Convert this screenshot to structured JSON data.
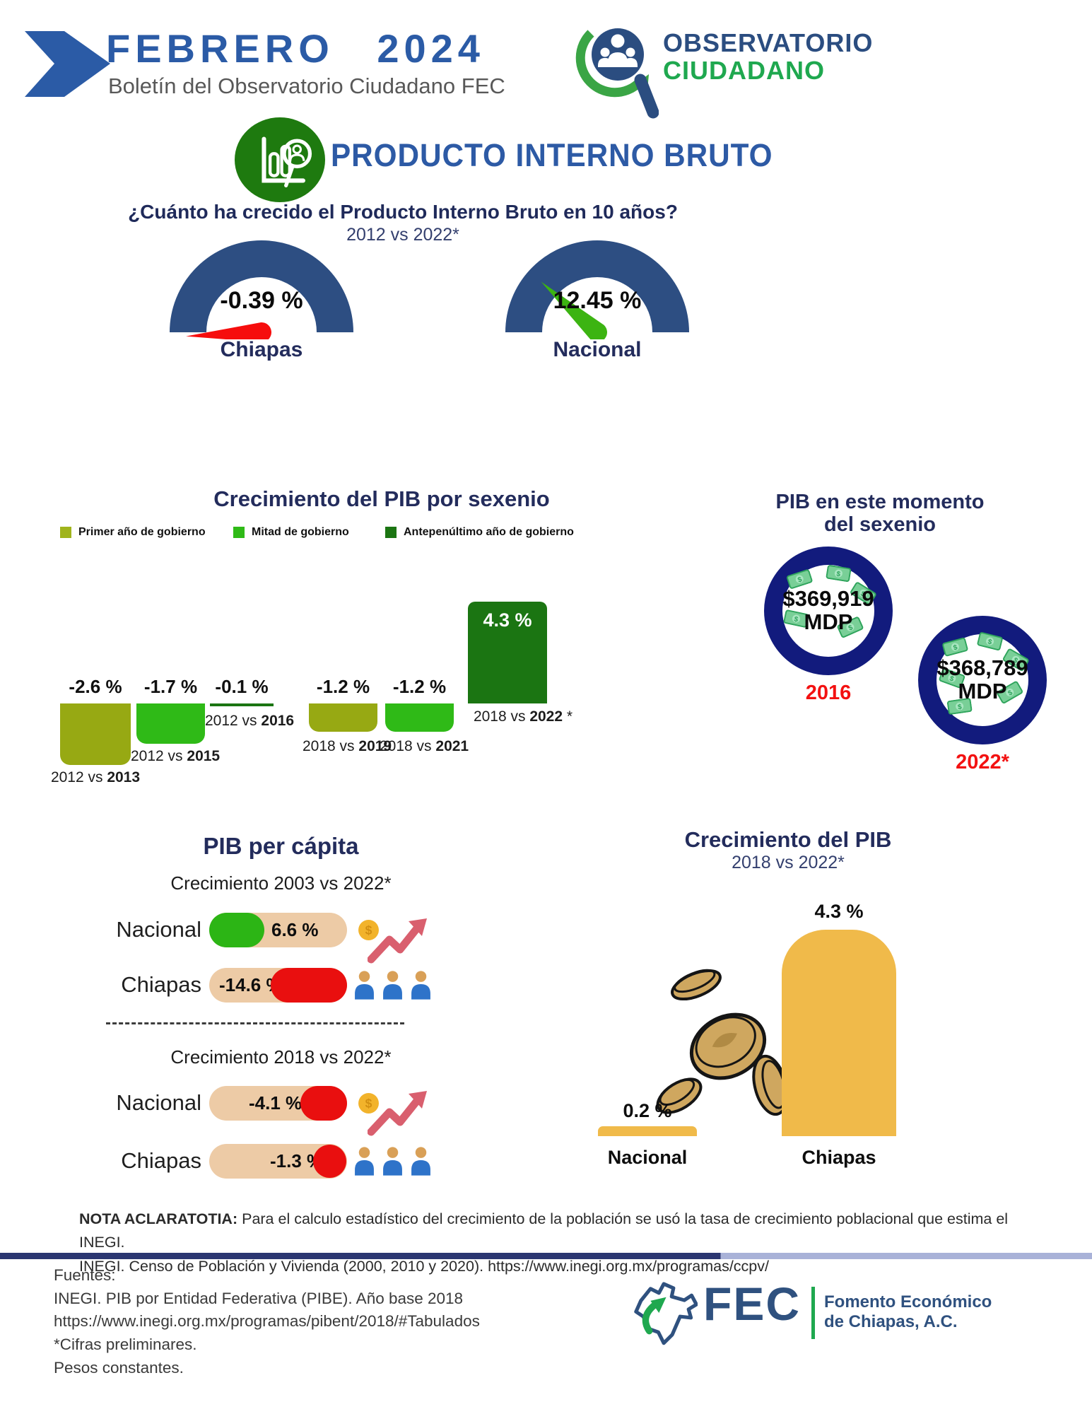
{
  "header": {
    "month_year": "FEBRERO 2024",
    "bulletin": "Boletín del Observatorio Ciudadano FEC",
    "logo_line1": "OBSERVATORIO",
    "logo_line2": "CIUDADANO"
  },
  "pib_header": {
    "title": "PRODUCTO INTERNO BRUTO"
  },
  "gauges": {
    "question": "¿Cuánto ha crecido el Producto Interno Bruto en 10 años?",
    "period": "2012 vs 2022*",
    "chiapas": {
      "value": "-0.39 %",
      "label": "Chiapas"
    },
    "nacional": {
      "value": "12.45 %",
      "label": "Nacional"
    }
  },
  "sexenio": {
    "title": "Crecimiento del PIB por sexenio",
    "legend": [
      {
        "label": "Primer año de gobierno",
        "color": "#a0b41c"
      },
      {
        "label": "Mitad de gobierno",
        "color": "#2fba17"
      },
      {
        "label": "Antepenúltimo año de gobierno",
        "color": "#1b7512"
      }
    ],
    "bars": [
      {
        "value_label": "-2.6 %",
        "prefix": "2012 vs ",
        "year": "2013",
        "suffix": "",
        "color": "#97a913"
      },
      {
        "value_label": "-1.7 %",
        "prefix": "2012 vs ",
        "year": "2015",
        "suffix": "",
        "color": "#2fba17"
      },
      {
        "value_label": "-0.1 %",
        "prefix": "2012 vs ",
        "year": "2016",
        "suffix": "",
        "color": "#1b7512"
      },
      {
        "value_label": "-1.2 %",
        "prefix": "2018 vs ",
        "year": "2019",
        "suffix": "",
        "color": "#97a913"
      },
      {
        "value_label": "-1.2 %",
        "prefix": "2018 vs ",
        "year": "2021",
        "suffix": "",
        "color": "#2fba17"
      },
      {
        "value_label": "4.3 %",
        "prefix": "2018 vs ",
        "year": "2022",
        "suffix": " *",
        "color": "#1b7512"
      }
    ]
  },
  "momento": {
    "title_line1": "PIB en este momento",
    "title_line2": "del sexenio",
    "circles": [
      {
        "amount": "$369,919",
        "unit": "MDP",
        "year": "2016"
      },
      {
        "amount": "$368,789",
        "unit": "MDP",
        "year": "2022*"
      }
    ]
  },
  "per_capita": {
    "title": "PIB per cápita",
    "section1": {
      "subtitle": "Crecimiento 2003 vs 2022*",
      "rows": [
        {
          "region": "Nacional",
          "value_label": "6.6 %"
        },
        {
          "region": "Chiapas",
          "value_label": "-14.6 %"
        }
      ]
    },
    "section2": {
      "subtitle": "Crecimiento 2018 vs 2022*",
      "rows": [
        {
          "region": "Nacional",
          "value_label": "-4.1 %"
        },
        {
          "region": "Chiapas",
          "value_label": "-1.3 %"
        }
      ]
    }
  },
  "crecimiento": {
    "title": "Crecimiento del PIB",
    "subtitle": "2018 vs 2022*",
    "bars": [
      {
        "label": "Nacional",
        "value_label": "0.2 %"
      },
      {
        "label": "Chiapas",
        "value_label": "4.3 %"
      }
    ]
  },
  "nota": {
    "bold": "NOTA ACLARATOTIA:",
    "text": " Para el calculo estadístico del crecimiento de la población se usó la tasa de crecimiento poblacional que estima el INEGI.",
    "line2": "INEGI. Censo de Población y Vivienda (2000, 2010 y 2020). https://www.inegi.org.mx/programas/ccpv/"
  },
  "fuentes": {
    "line1": "Fuentes:",
    "line2": "INEGI. PIB por Entidad Federativa (PIBE). Año base 2018",
    "line3": "https://www.inegi.org.mx/programas/pibent/2018/#Tabulados",
    "line4": "*Cifras preliminares.",
    "line5": "Pesos constantes."
  },
  "fec": {
    "name": "FEC",
    "org_line1": "Fomento Económico",
    "org_line2": "de Chiapas, A.C."
  },
  "colors": {
    "brand_blue": "#2b5ba6",
    "title_navy": "#232c5c",
    "gauge_arc": "#2d4e82",
    "needle_red": "#f60d0d",
    "needle_green": "#3cb412",
    "olive": "#97a913",
    "bright_green": "#2fba17",
    "dark_green": "#1b7512",
    "ring_navy": "#121b7d",
    "year_red": "#f31111",
    "tan_pill": "#edcba6",
    "pill_green": "#2cb515",
    "pill_red": "#e90f0f",
    "gold": "#f0ba4a",
    "fec_blue": "#2f517f",
    "fec_green": "#1fa84f"
  },
  "chart_data": [
    {
      "type": "gauge",
      "title": "¿Cuánto ha crecido el Producto Interno Bruto en 10 años?",
      "subtitle": "2012 vs 2022*",
      "unit": "%",
      "series": [
        {
          "name": "Chiapas",
          "value": -0.39
        },
        {
          "name": "Nacional",
          "value": 12.45
        }
      ]
    },
    {
      "type": "bar",
      "title": "Crecimiento del PIB por sexenio",
      "categories": [
        "2012 vs 2013",
        "2012 vs 2015",
        "2012 vs 2016",
        "2018 vs 2019",
        "2018 vs 2021",
        "2018 vs 2022 *"
      ],
      "values": [
        -2.6,
        -1.7,
        -0.1,
        -1.2,
        -1.2,
        4.3
      ],
      "unit": "%",
      "legend": [
        "Primer año de gobierno",
        "Mitad de gobierno",
        "Antepenúltimo año de gobierno"
      ],
      "legend_position": "top",
      "grid": false
    },
    {
      "type": "bar",
      "title": "PIB en este momento del sexenio",
      "categories": [
        "2016",
        "2022*"
      ],
      "values": [
        369919,
        368789
      ],
      "unit": "MDP"
    },
    {
      "type": "bar",
      "title": "PIB per cápita",
      "series": [
        {
          "name": "Crecimiento 2003 vs 2022*",
          "categories": [
            "Nacional",
            "Chiapas"
          ],
          "values": [
            6.6,
            -14.6
          ]
        },
        {
          "name": "Crecimiento 2018 vs 2022*",
          "categories": [
            "Nacional",
            "Chiapas"
          ],
          "values": [
            -4.1,
            -1.3
          ]
        }
      ],
      "unit": "%"
    },
    {
      "type": "bar",
      "title": "Crecimiento del PIB",
      "subtitle": "2018 vs 2022*",
      "categories": [
        "Nacional",
        "Chiapas"
      ],
      "values": [
        0.2,
        4.3
      ],
      "unit": "%",
      "grid": false
    }
  ]
}
